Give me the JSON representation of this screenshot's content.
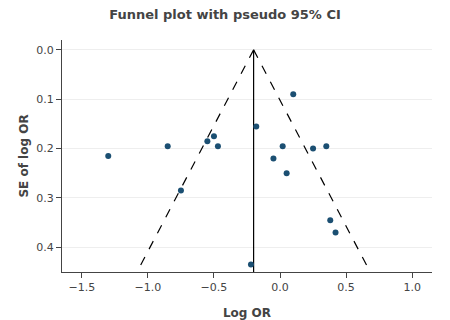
{
  "chart_data": {
    "type": "scatter",
    "title": "Funnel plot with pseudo 95% CI",
    "xlabel": "Log OR",
    "ylabel": "SE of log OR",
    "xlim": [
      -1.65,
      1.15
    ],
    "ylim": [
      0.45,
      -0.02
    ],
    "xticks": [
      {
        "value": -1.5,
        "label": "−1.5"
      },
      {
        "value": -1.0,
        "label": "−1.0"
      },
      {
        "value": -0.5,
        "label": "−0.5"
      },
      {
        "value": 0.0,
        "label": "0.0"
      },
      {
        "value": 0.5,
        "label": "0.5"
      },
      {
        "value": 1.0,
        "label": "1.0"
      }
    ],
    "yticks": [
      {
        "value": 0.0,
        "label": "0.0"
      },
      {
        "value": 0.1,
        "label": "0.1"
      },
      {
        "value": 0.2,
        "label": "0.2"
      },
      {
        "value": 0.3,
        "label": "0.3"
      },
      {
        "value": 0.4,
        "label": "0.4"
      }
    ],
    "grid": "y",
    "series": [
      {
        "type": "line",
        "line_style": "dashed",
        "color": "#000000",
        "x": [
          -0.2,
          -1.082
        ],
        "values": [
          0.0,
          0.45
        ]
      },
      {
        "type": "line",
        "line_style": "dashed",
        "color": "#000000",
        "x": [
          -0.2,
          0.682
        ],
        "values": [
          0.0,
          0.45
        ]
      },
      {
        "type": "line",
        "line_style": "solid",
        "color": "#000000",
        "x": [
          -0.2,
          -0.2
        ],
        "values": [
          0.0,
          0.45
        ]
      },
      {
        "type": "scatter",
        "color": "#1b4f72",
        "x": [
          -1.3,
          -0.85,
          -0.75,
          -0.55,
          -0.5,
          -0.47,
          -0.22,
          -0.18,
          -0.05,
          0.02,
          0.05,
          0.1,
          0.25,
          0.35,
          0.38,
          0.42
        ],
        "values": [
          0.215,
          0.195,
          0.285,
          0.185,
          0.175,
          0.195,
          0.435,
          0.155,
          0.22,
          0.195,
          0.25,
          0.09,
          0.2,
          0.195,
          0.345,
          0.37
        ]
      }
    ]
  }
}
